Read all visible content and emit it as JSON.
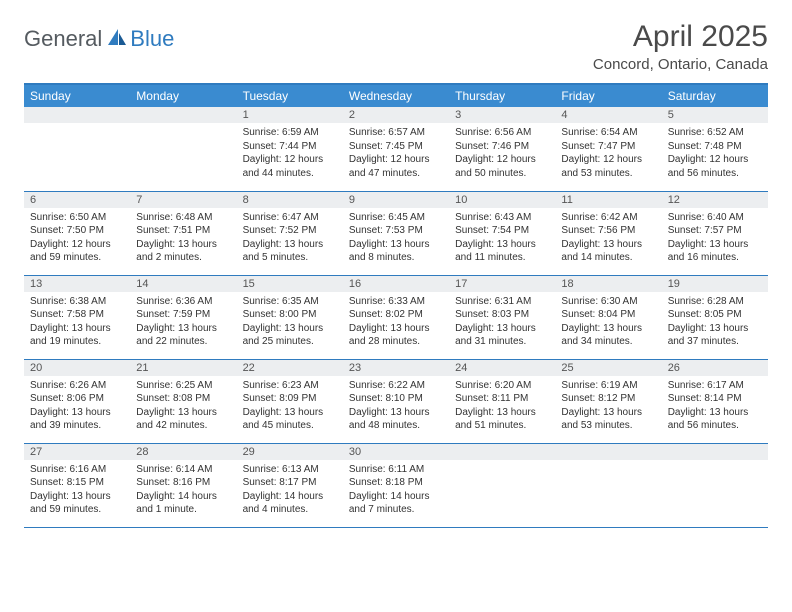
{
  "logo": {
    "general": "General",
    "blue": "Blue"
  },
  "title": "April 2025",
  "location": "Concord, Ontario, Canada",
  "header_color": "#3a8bd0",
  "border_color": "#2f7bbf",
  "daynum_bg": "#eceef0",
  "text_color": "#333333",
  "weekdays": [
    "Sunday",
    "Monday",
    "Tuesday",
    "Wednesday",
    "Thursday",
    "Friday",
    "Saturday"
  ],
  "weeks": [
    [
      null,
      null,
      {
        "n": "1",
        "sr": "6:59 AM",
        "ss": "7:44 PM",
        "dl": "12 hours and 44 minutes."
      },
      {
        "n": "2",
        "sr": "6:57 AM",
        "ss": "7:45 PM",
        "dl": "12 hours and 47 minutes."
      },
      {
        "n": "3",
        "sr": "6:56 AM",
        "ss": "7:46 PM",
        "dl": "12 hours and 50 minutes."
      },
      {
        "n": "4",
        "sr": "6:54 AM",
        "ss": "7:47 PM",
        "dl": "12 hours and 53 minutes."
      },
      {
        "n": "5",
        "sr": "6:52 AM",
        "ss": "7:48 PM",
        "dl": "12 hours and 56 minutes."
      }
    ],
    [
      {
        "n": "6",
        "sr": "6:50 AM",
        "ss": "7:50 PM",
        "dl": "12 hours and 59 minutes."
      },
      {
        "n": "7",
        "sr": "6:48 AM",
        "ss": "7:51 PM",
        "dl": "13 hours and 2 minutes."
      },
      {
        "n": "8",
        "sr": "6:47 AM",
        "ss": "7:52 PM",
        "dl": "13 hours and 5 minutes."
      },
      {
        "n": "9",
        "sr": "6:45 AM",
        "ss": "7:53 PM",
        "dl": "13 hours and 8 minutes."
      },
      {
        "n": "10",
        "sr": "6:43 AM",
        "ss": "7:54 PM",
        "dl": "13 hours and 11 minutes."
      },
      {
        "n": "11",
        "sr": "6:42 AM",
        "ss": "7:56 PM",
        "dl": "13 hours and 14 minutes."
      },
      {
        "n": "12",
        "sr": "6:40 AM",
        "ss": "7:57 PM",
        "dl": "13 hours and 16 minutes."
      }
    ],
    [
      {
        "n": "13",
        "sr": "6:38 AM",
        "ss": "7:58 PM",
        "dl": "13 hours and 19 minutes."
      },
      {
        "n": "14",
        "sr": "6:36 AM",
        "ss": "7:59 PM",
        "dl": "13 hours and 22 minutes."
      },
      {
        "n": "15",
        "sr": "6:35 AM",
        "ss": "8:00 PM",
        "dl": "13 hours and 25 minutes."
      },
      {
        "n": "16",
        "sr": "6:33 AM",
        "ss": "8:02 PM",
        "dl": "13 hours and 28 minutes."
      },
      {
        "n": "17",
        "sr": "6:31 AM",
        "ss": "8:03 PM",
        "dl": "13 hours and 31 minutes."
      },
      {
        "n": "18",
        "sr": "6:30 AM",
        "ss": "8:04 PM",
        "dl": "13 hours and 34 minutes."
      },
      {
        "n": "19",
        "sr": "6:28 AM",
        "ss": "8:05 PM",
        "dl": "13 hours and 37 minutes."
      }
    ],
    [
      {
        "n": "20",
        "sr": "6:26 AM",
        "ss": "8:06 PM",
        "dl": "13 hours and 39 minutes."
      },
      {
        "n": "21",
        "sr": "6:25 AM",
        "ss": "8:08 PM",
        "dl": "13 hours and 42 minutes."
      },
      {
        "n": "22",
        "sr": "6:23 AM",
        "ss": "8:09 PM",
        "dl": "13 hours and 45 minutes."
      },
      {
        "n": "23",
        "sr": "6:22 AM",
        "ss": "8:10 PM",
        "dl": "13 hours and 48 minutes."
      },
      {
        "n": "24",
        "sr": "6:20 AM",
        "ss": "8:11 PM",
        "dl": "13 hours and 51 minutes."
      },
      {
        "n": "25",
        "sr": "6:19 AM",
        "ss": "8:12 PM",
        "dl": "13 hours and 53 minutes."
      },
      {
        "n": "26",
        "sr": "6:17 AM",
        "ss": "8:14 PM",
        "dl": "13 hours and 56 minutes."
      }
    ],
    [
      {
        "n": "27",
        "sr": "6:16 AM",
        "ss": "8:15 PM",
        "dl": "13 hours and 59 minutes."
      },
      {
        "n": "28",
        "sr": "6:14 AM",
        "ss": "8:16 PM",
        "dl": "14 hours and 1 minute."
      },
      {
        "n": "29",
        "sr": "6:13 AM",
        "ss": "8:17 PM",
        "dl": "14 hours and 4 minutes."
      },
      {
        "n": "30",
        "sr": "6:11 AM",
        "ss": "8:18 PM",
        "dl": "14 hours and 7 minutes."
      },
      null,
      null,
      null
    ]
  ],
  "labels": {
    "sunrise": "Sunrise: ",
    "sunset": "Sunset: ",
    "daylight": "Daylight: "
  }
}
